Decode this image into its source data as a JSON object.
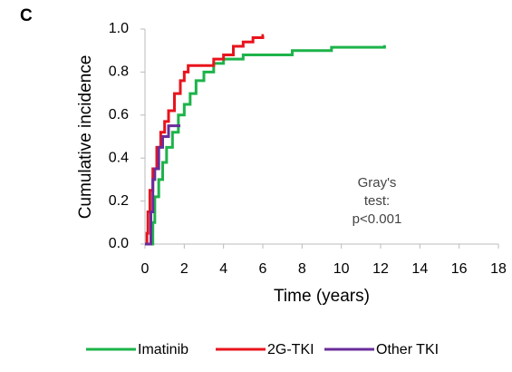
{
  "chart_data": {
    "type": "step",
    "panel_label": "C",
    "xlabel": "Time (years)",
    "ylabel": "Cumulative incidence",
    "annotation": [
      "Gray's",
      "test:",
      "p<0.001"
    ],
    "xlim": [
      0,
      18
    ],
    "xticks": [
      0,
      2,
      4,
      6,
      8,
      10,
      12,
      14,
      16,
      18
    ],
    "ylim": [
      0,
      1
    ],
    "yticks": [
      {
        "value": 0,
        "label": "0.0"
      },
      0.2,
      0.4,
      0.6,
      0.8,
      {
        "value": 1,
        "label": "1.0"
      }
    ],
    "grid": false,
    "legend": "bottom",
    "series": [
      {
        "name": "Imatinib",
        "color": "#1db34a",
        "x": [
          0,
          0.3,
          0.4,
          0.5,
          0.7,
          0.9,
          1.1,
          1.4,
          1.7,
          2,
          2.3,
          2.6,
          3,
          3.5,
          4,
          5,
          7.5,
          9.5,
          12.2
        ],
        "values": [
          0,
          0,
          0.1,
          0.22,
          0.3,
          0.38,
          0.45,
          0.52,
          0.6,
          0.65,
          0.7,
          0.76,
          0.8,
          0.84,
          0.86,
          0.88,
          0.9,
          0.915,
          0.925
        ]
      },
      {
        "name": "2G-TKI",
        "color": "#e8141c",
        "x": [
          0,
          0.1,
          0.15,
          0.25,
          0.4,
          0.6,
          0.8,
          1,
          1.2,
          1.5,
          1.8,
          2,
          2.2,
          3,
          3.5,
          4,
          4.5,
          5,
          5.5,
          6,
          6.05
        ],
        "values": [
          0,
          0.05,
          0.15,
          0.25,
          0.35,
          0.45,
          0.52,
          0.57,
          0.62,
          0.7,
          0.76,
          0.8,
          0.83,
          0.83,
          0.86,
          0.88,
          0.92,
          0.94,
          0.96,
          0.97,
          0.97
        ]
      },
      {
        "name": "Other TKI",
        "color": "#6a2c9a",
        "x": [
          0,
          0.2,
          0.3,
          0.4,
          0.5,
          0.7,
          0.9,
          1.2,
          1.8
        ],
        "values": [
          0,
          0,
          0.15,
          0.3,
          0.35,
          0.45,
          0.5,
          0.55,
          0.55
        ]
      }
    ]
  }
}
